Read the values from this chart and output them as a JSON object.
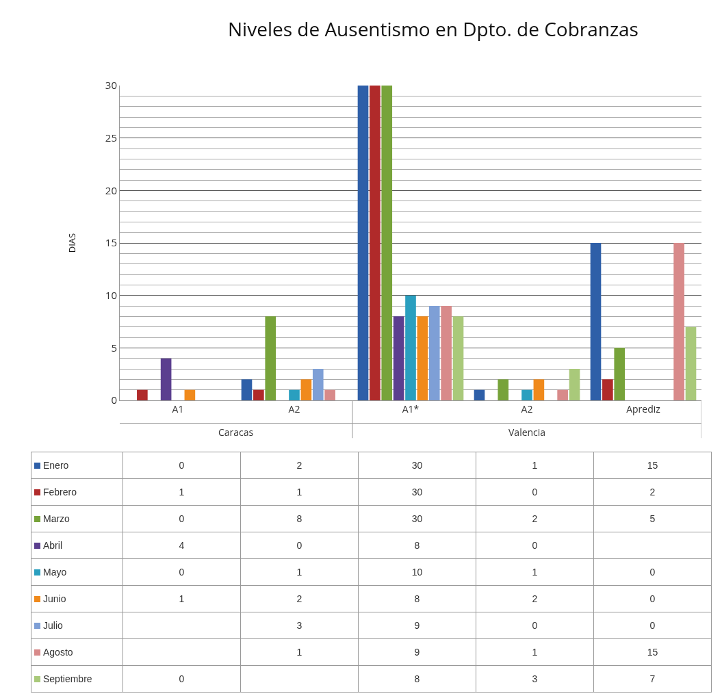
{
  "chart_data": {
    "type": "bar",
    "title": "Niveles de Ausentismo en Dpto. de Cobranzas",
    "ylabel": "DIAS",
    "categories": [
      "A1",
      "A2",
      "A1*",
      "A2",
      "Aprediz"
    ],
    "annotations": [
      "Caracas",
      "Valencia"
    ],
    "series": [
      {
        "name": "Enero",
        "color": "#2e5fa8",
        "values": [
          0,
          2,
          30,
          1,
          15
        ]
      },
      {
        "name": "Febrero",
        "color": "#b02a2a",
        "values": [
          1,
          1,
          30,
          0,
          2
        ]
      },
      {
        "name": "Marzo",
        "color": "#77a33a",
        "values": [
          0,
          8,
          30,
          2,
          5
        ]
      },
      {
        "name": "Abril",
        "color": "#5b3f8f",
        "values": [
          4,
          0,
          8,
          0,
          null
        ]
      },
      {
        "name": "Mayo",
        "color": "#2a9fbf",
        "values": [
          0,
          1,
          10,
          1,
          0
        ]
      },
      {
        "name": "Junio",
        "color": "#f08a1c",
        "values": [
          1,
          2,
          8,
          2,
          0
        ]
      },
      {
        "name": "Julio",
        "color": "#7e9fd6",
        "values": [
          null,
          3,
          9,
          0,
          0
        ]
      },
      {
        "name": "Agosto",
        "color": "#d88a8a",
        "values": [
          null,
          1,
          9,
          1,
          15
        ]
      },
      {
        "name": "Septiembre",
        "color": "#a9c97a",
        "values": [
          0,
          null,
          8,
          3,
          7
        ]
      }
    ],
    "ylim": [
      0,
      30
    ],
    "yticks": [
      0,
      5,
      10,
      15,
      20,
      25,
      30
    ],
    "grid": true,
    "legend": "bottom left",
    "data_labels": true
  }
}
